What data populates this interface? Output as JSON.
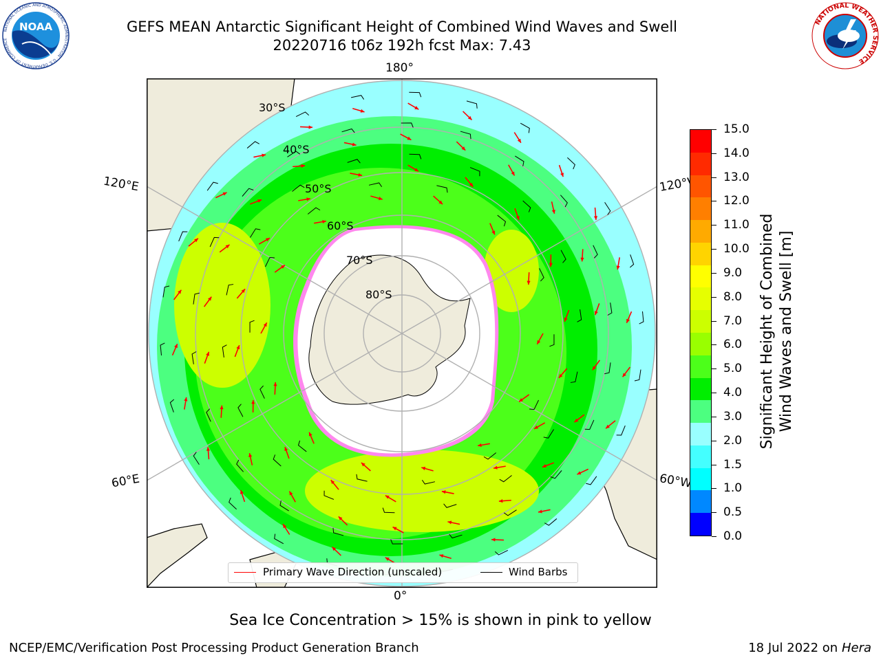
{
  "header": {
    "title_line1": "GEFS MEAN Antarctic Significant Height of Combined Wind Waves and Swell",
    "title_line2": "20220716 t06z 192h fcst   Max: 7.43"
  },
  "logos": {
    "noaa_text": "NOAA",
    "noaa_ring_text": "NATIONAL OCEANIC AND ATMOSPHERIC ADMINISTRATION · U.S. DEPARTMENT OF COMMERCE",
    "nws_ring_text": "NATIONAL WEATHER SERVICE"
  },
  "map": {
    "projection": "south-polar-stereographic",
    "lon_labels": {
      "top": "180°",
      "bottom": "0°",
      "left_upper": "120°E",
      "left_lower": "60°E",
      "right_upper": "120°W",
      "right_lower": "60°W"
    },
    "lat_labels": [
      "30°S",
      "40°S",
      "50°S",
      "60°S",
      "70°S",
      "80°S"
    ],
    "colors": {
      "land": "#efecdc",
      "sea_ice": "#ffffff",
      "coast": "#000000",
      "grid": "#b0b0b0",
      "wave_arrow": "#ff0000",
      "wind_barb": "#000000",
      "ice_edge": "#ff44cc"
    }
  },
  "colorbar": {
    "label_line1": "Significant Height of Combined",
    "label_line2": "Wind Waves and Swell [m]",
    "ticks": [
      "15.0",
      "14.0",
      "13.0",
      "12.0",
      "11.0",
      "10.0",
      "9.0",
      "8.0",
      "7.0",
      "6.0",
      "5.0",
      "4.0",
      "3.0",
      "2.0",
      "1.5",
      "1.0",
      "0.5",
      "0.0"
    ],
    "colors_top_to_bottom": [
      "#ff0000",
      "#ff2a00",
      "#ff5500",
      "#ff7f00",
      "#ffaa00",
      "#ffd400",
      "#ffff00",
      "#e6ff00",
      "#ccff00",
      "#99ff00",
      "#4cff1a",
      "#00ee00",
      "#4cff80",
      "#99ffff",
      "#44ffff",
      "#00ffff",
      "#0088ff",
      "#0000ff"
    ]
  },
  "legend": {
    "wave_label": "Primary Wave Direction (unscaled)",
    "wind_label": "Wind Barbs"
  },
  "footer": {
    "note": "Sea Ice Concentration > 15% is shown in pink to yellow",
    "credit": "NCEP/EMC/Verification Post Processing Product Generation Branch",
    "date": "18 Jul 2022 on ",
    "system": "Hera"
  }
}
